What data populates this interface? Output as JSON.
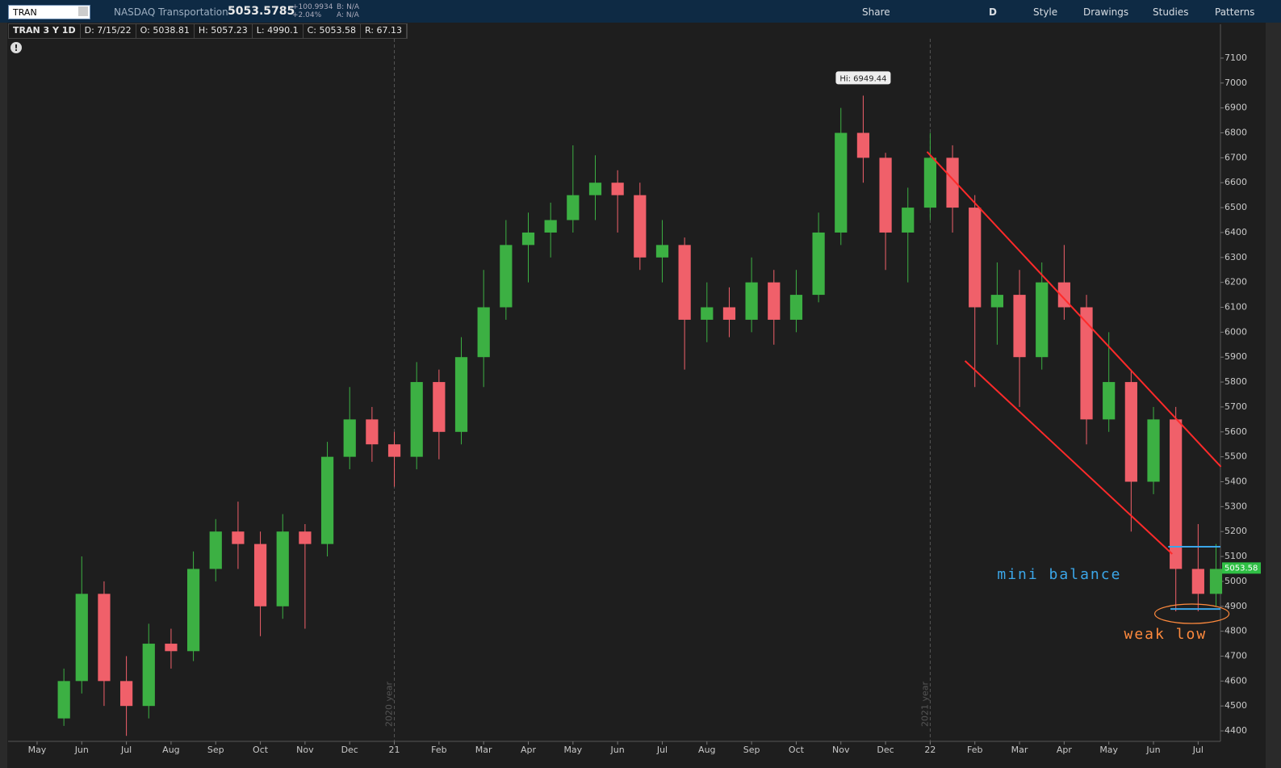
{
  "toolbar": {
    "symbol": "TRAN",
    "name": "NASDAQ Transportation",
    "price": "5053.5785",
    "change": "+100.9934",
    "change_pct": "+2.04%",
    "bid": "B: N/A",
    "ask": "A: N/A",
    "buttons": [
      "Share",
      "D",
      "Style",
      "Drawings",
      "Studies",
      "Patterns"
    ]
  },
  "header": {
    "study": "TRAN 3 Y 1D",
    "date": "D: 7/15/22",
    "open": "O: 5038.81",
    "high": "H: 5057.23",
    "low": "L: 4990.1",
    "close": "C: 5053.58",
    "range": "R: 67.13"
  },
  "chart_data": {
    "type": "candlestick",
    "up_color": "#3cb043",
    "down_color": "#f0606a",
    "x": [
      0.6,
      1,
      1.5,
      2,
      2.5,
      3,
      3.5,
      4,
      4.5,
      5,
      5.5,
      6,
      6.5,
      7,
      7.5,
      8,
      8.5,
      9,
      9.5,
      10,
      10.5,
      11,
      11.5,
      12,
      12.5,
      13,
      13.5,
      14,
      14.5,
      15,
      15.5,
      16,
      16.5,
      17,
      17.5,
      18,
      18.5,
      19,
      19.5,
      20,
      20.5,
      21,
      21.5,
      22,
      22.5,
      23,
      23.5,
      24,
      24.5,
      25,
      25.5,
      26,
      26.4
    ],
    "open": [
      4450,
      4600,
      4950,
      4600,
      4500,
      4750,
      4720,
      5050,
      5200,
      5150,
      4900,
      5200,
      5150,
      5500,
      5650,
      5550,
      5500,
      5800,
      5600,
      5900,
      6100,
      6350,
      6400,
      6450,
      6550,
      6600,
      6550,
      6300,
      6350,
      6050,
      6100,
      6050,
      6200,
      6050,
      6150,
      6400,
      6800,
      6700,
      6400,
      6500,
      6700,
      6500,
      6100,
      6150,
      5900,
      6200,
      6100,
      5650,
      5800,
      5400,
      5650,
      5050,
      4950
    ],
    "high": [
      4650,
      5100,
      5000,
      4700,
      4830,
      4810,
      5120,
      5250,
      5320,
      5200,
      5270,
      5230,
      5560,
      5780,
      5700,
      5600,
      5880,
      5850,
      5980,
      6250,
      6450,
      6480,
      6520,
      6750,
      6710,
      6650,
      6600,
      6450,
      6380,
      6200,
      6180,
      6300,
      6250,
      6250,
      6480,
      6900,
      6949.44,
      6720,
      6580,
      6800,
      6750,
      6550,
      6280,
      6250,
      6280,
      6350,
      6150,
      6000,
      5850,
      5700,
      5700,
      5230,
      5150
    ],
    "low": [
      4420,
      4550,
      4500,
      4380,
      4450,
      4650,
      4680,
      5000,
      5050,
      4780,
      4850,
      4810,
      5100,
      5450,
      5480,
      5380,
      5450,
      5490,
      5550,
      5780,
      6050,
      6200,
      6300,
      6400,
      6450,
      6400,
      6250,
      6200,
      5850,
      5960,
      5980,
      6000,
      5950,
      6000,
      6120,
      6350,
      6600,
      6250,
      6200,
      6450,
      6400,
      5780,
      5950,
      5700,
      5850,
      6050,
      5550,
      5600,
      5200,
      5350,
      4880,
      4880,
      4900
    ],
    "close": [
      4600,
      4950,
      4600,
      4500,
      4750,
      4720,
      5050,
      5200,
      5150,
      4900,
      5200,
      5150,
      5500,
      5650,
      5550,
      5500,
      5800,
      5600,
      5900,
      6100,
      6350,
      6400,
      6450,
      6550,
      6600,
      6550,
      6300,
      6350,
      6050,
      6100,
      6050,
      6200,
      6050,
      6150,
      6400,
      6800,
      6700,
      6400,
      6500,
      6700,
      6500,
      6100,
      6150,
      5900,
      6200,
      6100,
      5650,
      5800,
      5400,
      5650,
      5050,
      4950,
      5050
    ],
    "xlim": [
      -0.65,
      26.5
    ],
    "ylim": [
      4358,
      7236
    ],
    "xticks": [
      {
        "value": 0,
        "label": "May"
      },
      {
        "value": 1,
        "label": "Jun"
      },
      {
        "value": 2,
        "label": "Jul"
      },
      {
        "value": 3,
        "label": "Aug"
      },
      {
        "value": 4,
        "label": "Sep"
      },
      {
        "value": 5,
        "label": "Oct"
      },
      {
        "value": 6,
        "label": "Nov"
      },
      {
        "value": 7,
        "label": "Dec"
      },
      {
        "value": 8,
        "label": "21"
      },
      {
        "value": 9,
        "label": "Feb"
      },
      {
        "value": 10,
        "label": "Mar"
      },
      {
        "value": 11,
        "label": "Apr"
      },
      {
        "value": 12,
        "label": "May"
      },
      {
        "value": 13,
        "label": "Jun"
      },
      {
        "value": 14,
        "label": "Jul"
      },
      {
        "value": 15,
        "label": "Aug"
      },
      {
        "value": 16,
        "label": "Sep"
      },
      {
        "value": 17,
        "label": "Oct"
      },
      {
        "value": 18,
        "label": "Nov"
      },
      {
        "value": 19,
        "label": "Dec"
      },
      {
        "value": 20,
        "label": "22"
      },
      {
        "value": 21,
        "label": "Feb"
      },
      {
        "value": 22,
        "label": "Mar"
      },
      {
        "value": 23,
        "label": "Apr"
      },
      {
        "value": 24,
        "label": "May"
      },
      {
        "value": 25,
        "label": "Jun"
      },
      {
        "value": 26,
        "label": "Jul"
      }
    ],
    "yticks": [
      4400,
      4500,
      4600,
      4700,
      4800,
      4900,
      5000,
      5100,
      5200,
      5300,
      5400,
      5500,
      5600,
      5700,
      5800,
      5900,
      6000,
      6100,
      6200,
      6300,
      6400,
      6500,
      6600,
      6700,
      6800,
      6900,
      7000,
      7100
    ],
    "last_price": 5053.58,
    "high_label": "Hi: 6949.44",
    "separators": [
      {
        "x": 8,
        "label": "2020 year"
      },
      {
        "x": 20,
        "label": "2021 year"
      }
    ],
    "trendlines": [
      {
        "color": "#ff2a2a",
        "x": [
          19.93,
          26.51
        ],
        "y": [
          6724,
          5460
        ]
      },
      {
        "color": "#ff2a2a",
        "x": [
          20.78,
          25.42
        ],
        "y": [
          5885,
          5110
        ]
      },
      {
        "color": "#3ba6e8",
        "x": [
          25.33,
          26.5
        ],
        "y": [
          5139,
          5139
        ]
      },
      {
        "color": "#3ba6e8",
        "x": [
          25.38,
          26.5
        ],
        "y": [
          4889,
          4889
        ]
      }
    ],
    "notes": [
      {
        "text": "mini balance",
        "color": "#3ba6e8",
        "x": 21.5,
        "y": 5025
      },
      {
        "text": "weak low",
        "color": "#ff8a3d",
        "x": 24.34,
        "y": 4786
      }
    ],
    "ellipse": {
      "x": 25.86,
      "y": 4870,
      "color": "#ff8a3d"
    }
  }
}
